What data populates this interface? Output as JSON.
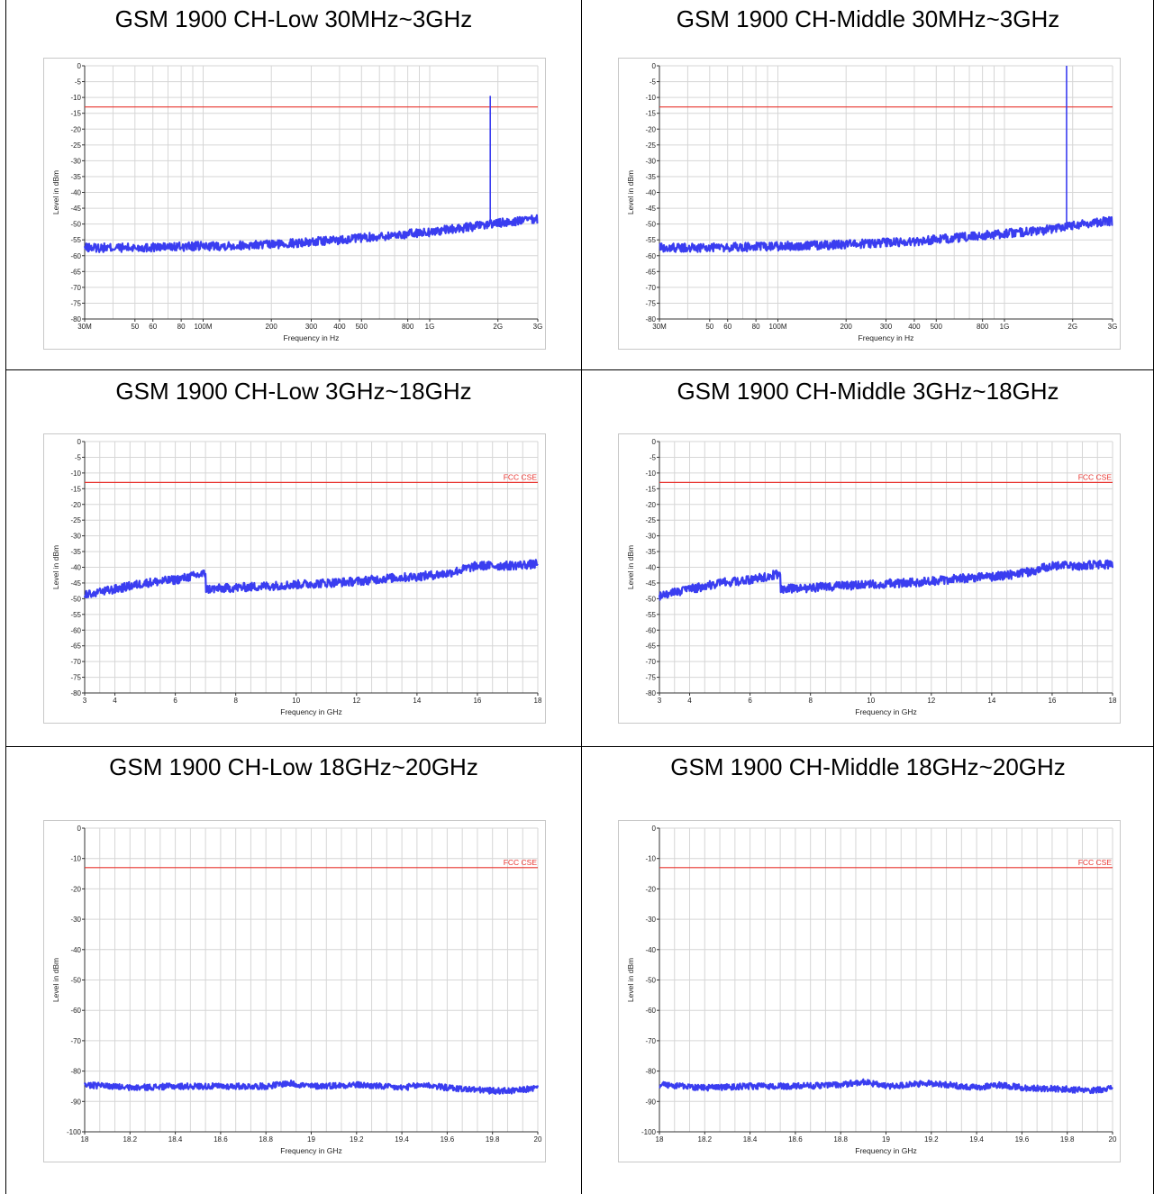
{
  "panels": [
    {
      "title": "GSM 1900 CH-Low 30MHz~3GHz"
    },
    {
      "title": "GSM 1900 CH-Middle 30MHz~3GHz"
    },
    {
      "title": "GSM 1900 CH-Low 3GHz~18GHz"
    },
    {
      "title": "GSM 1900 CH-Middle 3GHz~18GHz"
    },
    {
      "title": "GSM 1900 CH-Low 18GHz~20GHz"
    },
    {
      "title": "GSM 1900 CH-Middle 18GHz~20GHz"
    }
  ],
  "colors": {
    "trace": "#3a3df0",
    "limit": "#e8342f",
    "grid": "#d6d6d6"
  },
  "chart_data": [
    {
      "type": "line",
      "title": "GSM 1900 CH-Low 30MHz~3GHz",
      "xscale": "log",
      "xlim": [
        30000000,
        3000000000
      ],
      "ylim": [
        -80,
        0
      ],
      "xlabel": "Frequency in Hz",
      "ylabel": "Level in dBm",
      "xticks": [
        [
          30000000,
          "30M"
        ],
        [
          50000000,
          "50"
        ],
        [
          60000000,
          "60"
        ],
        [
          80000000,
          "80"
        ],
        [
          100000000,
          "100M"
        ],
        [
          200000000,
          "200"
        ],
        [
          300000000,
          "300"
        ],
        [
          400000000,
          "400"
        ],
        [
          500000000,
          "500"
        ],
        [
          800000000,
          "800"
        ],
        [
          1000000000,
          "1G"
        ],
        [
          2000000000,
          "2G"
        ],
        [
          3000000000,
          "3G"
        ]
      ],
      "yticks": [
        0,
        -5,
        -10,
        -15,
        -20,
        -25,
        -30,
        -35,
        -40,
        -45,
        -50,
        -55,
        -60,
        -65,
        -70,
        -75,
        -80
      ],
      "limit": {
        "y": -13,
        "label": ""
      },
      "series": [
        {
          "x": [
            30000000,
            50000000,
            100000000,
            200000000,
            400000000,
            700000000,
            1000000000,
            1500000000,
            1850000000,
            1850000000,
            1855000000,
            1860000000,
            2500000000,
            3000000000
          ],
          "y": [
            -57.5,
            -57.5,
            -57,
            -56.5,
            -55,
            -53.5,
            -52.5,
            -51,
            -50,
            -9.5,
            -50,
            -50,
            -49,
            -48.5
          ]
        }
      ]
    },
    {
      "type": "line",
      "title": "GSM 1900 CH-Middle 30MHz~3GHz",
      "xscale": "log",
      "xlim": [
        30000000,
        3000000000
      ],
      "ylim": [
        -80,
        0
      ],
      "xlabel": "Frequency in Hz",
      "ylabel": "Level in dBm",
      "xticks": [
        [
          30000000,
          "30M"
        ],
        [
          50000000,
          "50"
        ],
        [
          60000000,
          "60"
        ],
        [
          80000000,
          "80"
        ],
        [
          100000000,
          "100M"
        ],
        [
          200000000,
          "200"
        ],
        [
          300000000,
          "300"
        ],
        [
          400000000,
          "400"
        ],
        [
          500000000,
          "500"
        ],
        [
          800000000,
          "800"
        ],
        [
          1000000000,
          "1G"
        ],
        [
          2000000000,
          "2G"
        ],
        [
          3000000000,
          "3G"
        ]
      ],
      "yticks": [
        0,
        -5,
        -10,
        -15,
        -20,
        -25,
        -30,
        -35,
        -40,
        -45,
        -50,
        -55,
        -60,
        -65,
        -70,
        -75,
        -80
      ],
      "limit": {
        "y": -13,
        "label": ""
      },
      "series": [
        {
          "x": [
            30000000,
            50000000,
            100000000,
            200000000,
            400000000,
            700000000,
            1000000000,
            1500000000,
            1880000000,
            1880000000,
            1885000000,
            1890000000,
            2500000000,
            3000000000
          ],
          "y": [
            -57.5,
            -57.5,
            -57,
            -56.5,
            -55.5,
            -54,
            -53,
            -52,
            -50.5,
            0,
            -50.5,
            -50.5,
            -49.5,
            -49
          ]
        }
      ]
    },
    {
      "type": "line",
      "title": "GSM 1900 CH-Low 3GHz~18GHz",
      "xscale": "linear",
      "xlim": [
        3,
        18
      ],
      "ylim": [
        -80,
        0
      ],
      "xlabel": "Frequency in GHz",
      "ylabel": "Level in dBm",
      "xticks": [
        [
          3,
          "3"
        ],
        [
          4,
          "4"
        ],
        [
          6,
          "6"
        ],
        [
          8,
          "8"
        ],
        [
          10,
          "10"
        ],
        [
          12,
          "12"
        ],
        [
          14,
          "14"
        ],
        [
          16,
          "16"
        ],
        [
          18,
          "18"
        ]
      ],
      "yticks": [
        0,
        -5,
        -10,
        -15,
        -20,
        -25,
        -30,
        -35,
        -40,
        -45,
        -50,
        -55,
        -60,
        -65,
        -70,
        -75,
        -80
      ],
      "limit": {
        "y": -13,
        "label": "FCC CSE"
      },
      "series": [
        {
          "x": [
            3,
            4,
            5,
            6,
            7,
            7,
            8,
            9,
            10,
            11,
            12,
            13,
            14,
            15,
            16,
            17,
            18
          ],
          "y": [
            -49,
            -47,
            -45,
            -44,
            -42,
            -47,
            -46.5,
            -46,
            -45.5,
            -45,
            -44.5,
            -43.5,
            -43,
            -42,
            -39.5,
            -39.5,
            -39
          ]
        }
      ]
    },
    {
      "type": "line",
      "title": "GSM 1900 CH-Middle 3GHz~18GHz",
      "xscale": "linear",
      "xlim": [
        3,
        18
      ],
      "ylim": [
        -80,
        0
      ],
      "xlabel": "Frequency in GHz",
      "ylabel": "Level in dBm",
      "xticks": [
        [
          3,
          "3"
        ],
        [
          4,
          "4"
        ],
        [
          6,
          "6"
        ],
        [
          8,
          "8"
        ],
        [
          10,
          "10"
        ],
        [
          12,
          "12"
        ],
        [
          14,
          "14"
        ],
        [
          16,
          "16"
        ],
        [
          18,
          "18"
        ]
      ],
      "yticks": [
        0,
        -5,
        -10,
        -15,
        -20,
        -25,
        -30,
        -35,
        -40,
        -45,
        -50,
        -55,
        -60,
        -65,
        -70,
        -75,
        -80
      ],
      "limit": {
        "y": -13,
        "label": "FCC CSE"
      },
      "series": [
        {
          "x": [
            3,
            4,
            5,
            6,
            7,
            7,
            8,
            9,
            10,
            11,
            12,
            13,
            14,
            15,
            16,
            17,
            18
          ],
          "y": [
            -49,
            -47,
            -45,
            -44,
            -42,
            -47,
            -46.5,
            -46,
            -45.5,
            -45,
            -44.5,
            -43.5,
            -43,
            -42,
            -39.5,
            -39.5,
            -39
          ]
        }
      ]
    },
    {
      "type": "line",
      "title": "GSM 1900 CH-Low 18GHz~20GHz",
      "xscale": "linear",
      "xlim": [
        18,
        20
      ],
      "ylim": [
        -100,
        0
      ],
      "xlabel": "Frequency in GHz",
      "ylabel": "Level in dBm",
      "xticks": [
        [
          18,
          "18"
        ],
        [
          18.2,
          "18.2"
        ],
        [
          18.4,
          "18.4"
        ],
        [
          18.6,
          "18.6"
        ],
        [
          18.8,
          "18.8"
        ],
        [
          19,
          "19"
        ],
        [
          19.2,
          "19.2"
        ],
        [
          19.4,
          "19.4"
        ],
        [
          19.6,
          "19.6"
        ],
        [
          19.8,
          "19.8"
        ],
        [
          20,
          "20"
        ]
      ],
      "yticks": [
        0,
        -10,
        -20,
        -30,
        -40,
        -50,
        -60,
        -70,
        -80,
        -90,
        -100
      ],
      "limit": {
        "y": -13,
        "label": "FCC CSE"
      },
      "series": [
        {
          "x": [
            18,
            18.2,
            18.4,
            18.6,
            18.8,
            18.9,
            19,
            19.2,
            19.4,
            19.5,
            19.6,
            19.8,
            19.9,
            20
          ],
          "y": [
            -84.5,
            -85.5,
            -85,
            -85,
            -85,
            -84,
            -85,
            -84.5,
            -85.5,
            -84.5,
            -85.5,
            -86.5,
            -86.5,
            -85.5
          ]
        }
      ]
    },
    {
      "type": "line",
      "title": "GSM 1900 CH-Middle 18GHz~20GHz",
      "xscale": "linear",
      "xlim": [
        18,
        20
      ],
      "ylim": [
        -100,
        0
      ],
      "xlabel": "Frequency in GHz",
      "ylabel": "Level in dBm",
      "xticks": [
        [
          18,
          "18"
        ],
        [
          18.2,
          "18.2"
        ],
        [
          18.4,
          "18.4"
        ],
        [
          18.6,
          "18.6"
        ],
        [
          18.8,
          "18.8"
        ],
        [
          19,
          "19"
        ],
        [
          19.2,
          "19.2"
        ],
        [
          19.4,
          "19.4"
        ],
        [
          19.6,
          "19.6"
        ],
        [
          19.8,
          "19.8"
        ],
        [
          20,
          "20"
        ]
      ],
      "yticks": [
        0,
        -10,
        -20,
        -30,
        -40,
        -50,
        -60,
        -70,
        -80,
        -90,
        -100
      ],
      "limit": {
        "y": -13,
        "label": "FCC CSE"
      },
      "series": [
        {
          "x": [
            18,
            18.2,
            18.4,
            18.6,
            18.8,
            18.9,
            19,
            19.2,
            19.4,
            19.5,
            19.6,
            19.8,
            19.9,
            20
          ],
          "y": [
            -84.5,
            -85.5,
            -85,
            -85,
            -84.5,
            -83.5,
            -85,
            -84,
            -85.5,
            -84.5,
            -85.5,
            -86,
            -86.5,
            -85.5
          ]
        }
      ]
    }
  ]
}
